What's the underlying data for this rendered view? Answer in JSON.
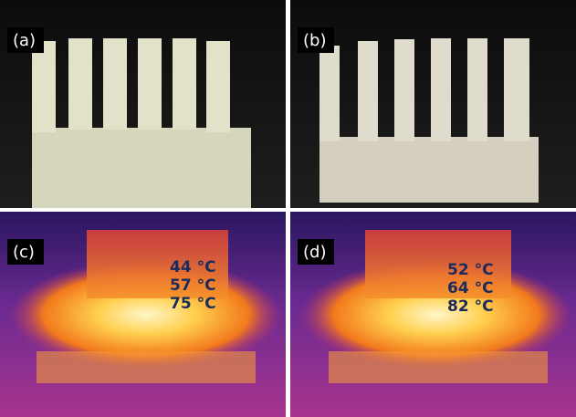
{
  "panels": [
    {
      "label": "(a)"
    },
    {
      "label": "(b)"
    },
    {
      "label": "(c)",
      "readings": [
        "44 °C",
        "57 °C",
        "75 °C"
      ]
    },
    {
      "label": "(d)",
      "readings": [
        "52 °C",
        "64 °C",
        "82 °C"
      ]
    }
  ]
}
